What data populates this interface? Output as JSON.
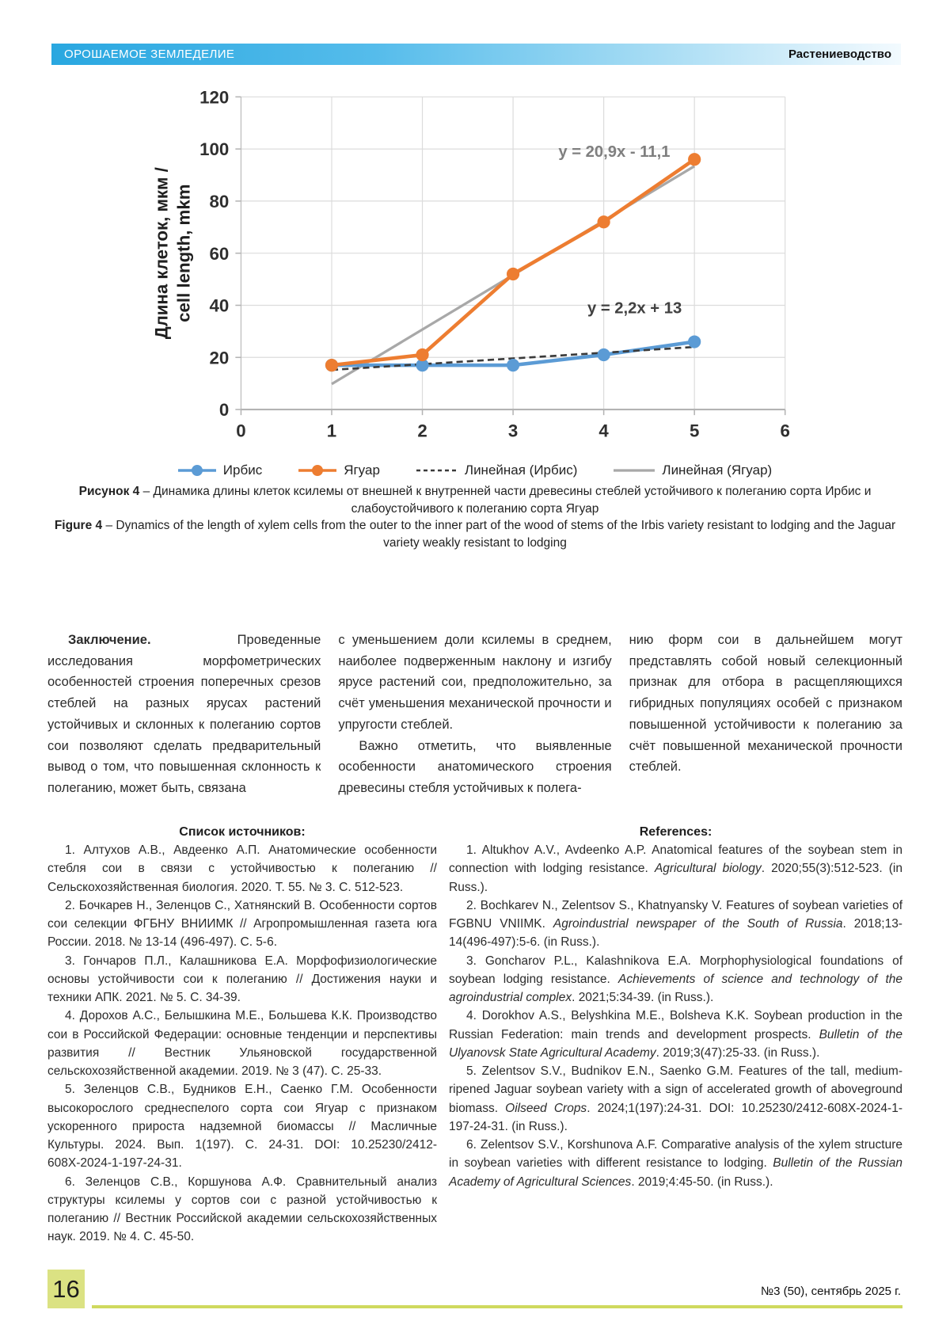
{
  "header": {
    "journal": "ОРОШАЕМОЕ ЗЕМЛЕДЕЛИЕ",
    "section": "Растениеводство"
  },
  "colors": {
    "header_blue": "#29a7e0",
    "footer_green": "#dbe283",
    "footer_rule_green": "#cfd95e",
    "series_irbis_blue": "#5B9BD5",
    "series_jaguar_orange": "#ED7D31",
    "trend_gray": "#A8A8A8",
    "trend_dashed_dark": "#3A3A3A"
  },
  "chart_data": {
    "type": "line",
    "x": [
      1,
      2,
      3,
      4,
      5
    ],
    "series": [
      {
        "name": "Ирбис",
        "color": "#5B9BD5",
        "marker": "circle",
        "values": [
          17,
          17,
          17,
          21,
          26
        ]
      },
      {
        "name": "Ягуар",
        "color": "#ED7D31",
        "marker": "circle",
        "values": [
          17,
          21,
          52,
          72,
          96
        ]
      }
    ],
    "trendlines": [
      {
        "name": "Линейная (Ирбис)",
        "style": "dashed",
        "color": "#3A3A3A",
        "slope": 2.2,
        "intercept": 13,
        "x_range": [
          1,
          5
        ],
        "equation": "y = 2,2x + 13",
        "eq_pos": {
          "x": 3.82,
          "y": 37
        },
        "eq_color": "#404040"
      },
      {
        "name": "Линейная (Ягуар)",
        "style": "solid",
        "color": "#A8A8A8",
        "slope": 20.9,
        "intercept": -11.1,
        "x_range": [
          1,
          5
        ],
        "equation": "y = 20,9x - 11,1",
        "eq_pos": {
          "x": 3.5,
          "y": 97
        },
        "eq_color": "#7F7F7F"
      }
    ],
    "title": "",
    "xlabel": "",
    "ylabel_line1": "Длина клеток, мкм /",
    "ylabel_line2": "cell length, mkm",
    "xlim": [
      0,
      6
    ],
    "ylim": [
      0,
      120
    ],
    "xtick_step": 1,
    "ytick_step": 20,
    "grid": true,
    "legend_position": "bottom"
  },
  "figure_caption": {
    "ru_label": "Рисунок 4",
    "ru_text": "– Динамика длины клеток ксилемы от внешней к внутренней части древесины стеблей устойчивого к полеганию сорта Ирбис и слабоустойчивого к полеганию сорта Ягуар",
    "en_label": "Figure 4",
    "en_text": "– Dynamics of the length of xylem cells from the outer to the inner part of the wood of stems of the Irbis variety resistant to lodging and the Jaguar variety weakly resistant to lodging"
  },
  "conclusion": {
    "col1_lead": "Заключение.",
    "col1_text": "Проведенные исследования морфометрических особенностей строения поперечных срезов стеблей на разных ярусах растений устойчивых и склонных к полеганию сортов сои позволяют сделать предварительный вывод о том, что повышенная склонность к полеганию, может быть, связана",
    "col2_para1": "с уменьшением доли ксилемы в среднем, наиболее подверженным наклону и изгибу ярусе растений сои, предположительно, за счёт уменьшения механической прочности и упругости стеблей.",
    "col2_para2": "Важно отметить, что выявленные особенности анатомического строения древесины стебля устойчивых к полега-",
    "col3_para": "нию форм сои в дальнейшем могут представлять собой новый селекционный признак для отбора в расщепляющихся гибридных популяциях особей с признаком повышенной устойчивости к полеганию за счёт повышенной механической прочности стеблей."
  },
  "references_ru": {
    "title": "Список источников:",
    "items": [
      "1. Алтухов А.В., Авдеенко А.П. Анатомические особенности стебля сои в связи с устойчивостью к полеганию // Сельскохозяйственная биология. 2020. Т. 55. № 3. С. 512-523.",
      "2. Бочкарев Н., Зеленцов С., Хатнянский В. Особенности сортов сои селекции ФГБНУ ВНИИМК // Агропромышленная газета юга России. 2018. № 13-14 (496-497). С. 5-6.",
      "3. Гончаров П.Л., Калашникова Е.А. Морфофизиологические основы устойчивости сои к полеганию // Достижения науки и техники АПК. 2021. № 5. С. 34-39.",
      "4. Дорохов А.С., Белышкина М.Е., Большева К.К. Производство сои в Российской Федерации: основные тенденции и перспективы развития // Вестник Ульяновской государственной сельскохозяйственной академии. 2019. № 3 (47). С. 25-33.",
      "5. Зеленцов С.В., Будников Е.Н., Саенко Г.М. Особенности высокорослого среднеспелого сорта сои Ягуар с признаком ускоренного прироста надземной биомассы // Масличные Культуры. 2024. Вып. 1(197). С. 24-31. DOI: 10.25230/2412-608Х-2024-1-197-24-31.",
      "6. Зеленцов С.В., Коршунова А.Ф. Сравнительный анализ структуры ксилемы у сортов сои с разной устойчивостью к полеганию // Вестник Российской академии сельскохозяйственных наук. 2019. № 4. С. 45-50."
    ]
  },
  "references_en": {
    "title": "References:",
    "items": [
      [
        {
          "t": "1. Altukhov A.V., Avdeenko A.P. Anatomical features of the soybean stem in connection with lodging resistance. ",
          "i": false
        },
        {
          "t": "Agricultural biology",
          "i": true
        },
        {
          "t": ". 2020;55(3):512-523. (in Russ.).",
          "i": false
        }
      ],
      [
        {
          "t": "2. Bochkarev N., Zelentsov S., Khatnyansky V. Features of soybean varieties of FGBNU VNIIMK. ",
          "i": false
        },
        {
          "t": "Agroindustrial newspaper of the South of Russia",
          "i": true
        },
        {
          "t": ". 2018;13-14(496-497):5-6. (in Russ.).",
          "i": false
        }
      ],
      [
        {
          "t": "3. Goncharov P.L., Kalashnikova E.A. Morphophysiological foundations of soybean lodging resistance. ",
          "i": false
        },
        {
          "t": "Achievements of science and technology of the agroindustrial complex",
          "i": true
        },
        {
          "t": ". 2021;5:34-39. (in Russ.).",
          "i": false
        }
      ],
      [
        {
          "t": "4. Dorokhov A.S., Belyshkina M.E., Bolsheva K.K. Soybean production in the Russian Federation: main trends and development prospects. ",
          "i": false
        },
        {
          "t": "Bulletin of the Ulyanovsk State Agricultural Academy",
          "i": true
        },
        {
          "t": ". 2019;3(47):25-33. (in Russ.).",
          "i": false
        }
      ],
      [
        {
          "t": "5. Zelentsov S.V., Budnikov E.N., Saenko G.M. Features of the tall, medium-ripened Jaguar soybean variety with a sign of accelerated growth of aboveground biomass. ",
          "i": false
        },
        {
          "t": "Oilseed Crops",
          "i": true
        },
        {
          "t": ". 2024;1(197):24-31. DOI: 10.25230/2412-608X-2024-1-197-24-31. (in Russ.).",
          "i": false
        }
      ],
      [
        {
          "t": "6. Zelentsov S.V., Korshunova A.F. Comparative analysis of the xylem structure in soybean varieties with different resistance to lodging. ",
          "i": false
        },
        {
          "t": "Bulletin of the Russian Academy of Agricultural Sciences",
          "i": true
        },
        {
          "t": ". 2019;4:45-50. (in Russ.).",
          "i": false
        }
      ]
    ]
  },
  "footer": {
    "page_number": "16",
    "issue": "№3 (50), сентябрь 2025 г."
  }
}
